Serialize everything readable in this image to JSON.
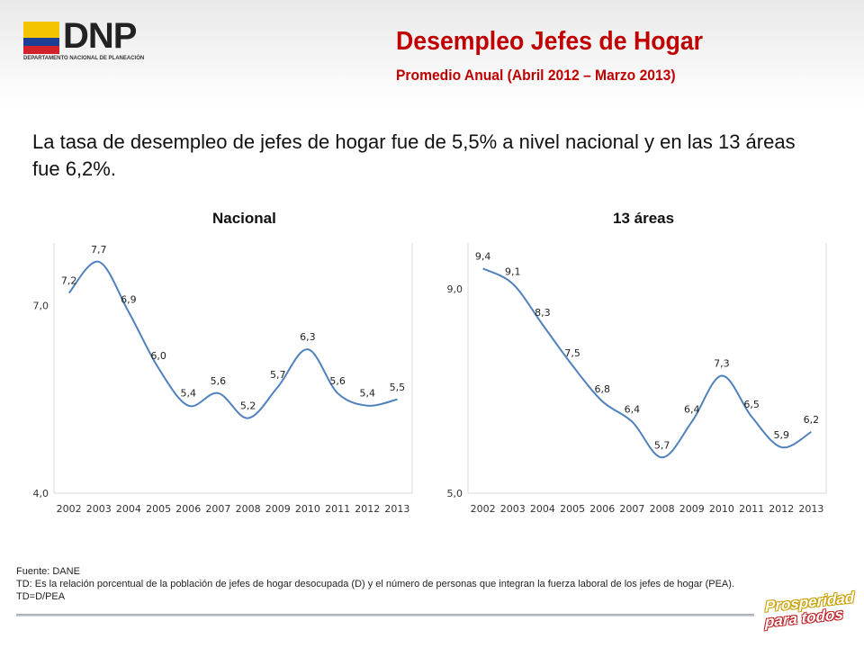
{
  "header": {
    "logo_text": "DNP",
    "logo_subtitle": "DEPARTAMENTO NACIONAL DE PLANEACIÓN",
    "title": "Desempleo Jefes de Hogar",
    "subtitle": "Promedio Anual (Abril 2012 – Marzo 2013)"
  },
  "summary": "La tasa de desempleo de jefes de hogar fue de 5,5% a nivel nacional y en las 13 áreas fue 6,2%.",
  "footer": {
    "source": "Fuente: DANE",
    "note": "TD: Es la relación porcentual de la población de jefes de hogar desocupada (D) y el número de personas que integran la fuerza laboral de los jefes de hogar (PEA). TD=D/PEA",
    "badge_line1": "Prosperidad",
    "badge_line2": "para todos"
  },
  "colors": {
    "accent": "#c00000",
    "line": "#4f81bd"
  },
  "chart_data": [
    {
      "type": "line",
      "title": "Nacional",
      "categories": [
        "2002",
        "2003",
        "2004",
        "2005",
        "2006",
        "2007",
        "2008",
        "2009",
        "2010",
        "2011",
        "2012",
        "2013"
      ],
      "values": [
        7.2,
        7.7,
        6.9,
        6.0,
        5.4,
        5.6,
        5.2,
        5.7,
        6.3,
        5.6,
        5.4,
        5.5
      ],
      "labels": [
        "7,2",
        "7,7",
        "6,9",
        "6,0",
        "5,4",
        "5,6",
        "5,2",
        "5,7",
        "6,3",
        "5,6",
        "5,4",
        "5,5"
      ],
      "yticks": [
        4.0,
        7.0
      ],
      "ytick_labels": [
        "4,0",
        "7,0"
      ],
      "ylim": [
        4.0,
        8.0
      ],
      "grid": false
    },
    {
      "type": "line",
      "title": "13 áreas",
      "categories": [
        "2002",
        "2003",
        "2004",
        "2005",
        "2006",
        "2007",
        "2008",
        "2009",
        "2010",
        "2011",
        "2012",
        "2013"
      ],
      "values": [
        9.4,
        9.1,
        8.3,
        7.5,
        6.8,
        6.4,
        5.7,
        6.4,
        7.3,
        6.5,
        5.9,
        6.2
      ],
      "labels": [
        "9,4",
        "9,1",
        "8,3",
        "7,5",
        "6,8",
        "6,4",
        "5,7",
        "6,4",
        "7,3",
        "6,5",
        "5,9",
        "6,2"
      ],
      "yticks": [
        5.0,
        9.0
      ],
      "ytick_labels": [
        "5,0",
        "9,0"
      ],
      "ylim": [
        5.0,
        9.9
      ],
      "grid": false
    }
  ]
}
